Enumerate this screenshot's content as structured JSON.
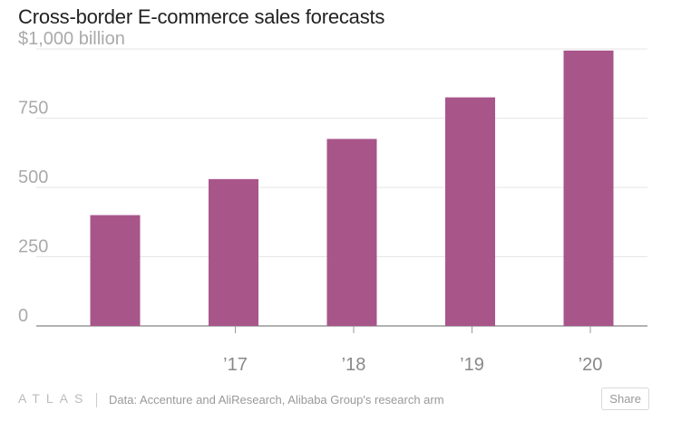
{
  "colors": {
    "bar": "#a8558a",
    "grid": "#e6e6e6",
    "axis": "#999999"
  },
  "chart_data": {
    "type": "bar",
    "title": "Cross-border E-commerce sales forecasts",
    "categories": [
      "",
      "’17",
      "’18",
      "’19",
      "’20"
    ],
    "values": [
      400,
      530,
      675,
      825,
      994
    ],
    "ylim": [
      0,
      1000
    ],
    "yticks": [
      0,
      250,
      500,
      750,
      1000
    ],
    "ytick_labels": [
      "0",
      "250",
      "500",
      "750",
      "$1,000 billion"
    ],
    "xlabel": "",
    "ylabel": ""
  },
  "footer": {
    "logo": "ATLAS",
    "source": "Data: Accenture and AliResearch, Alibaba Group's research arm",
    "share_label": "Share"
  }
}
